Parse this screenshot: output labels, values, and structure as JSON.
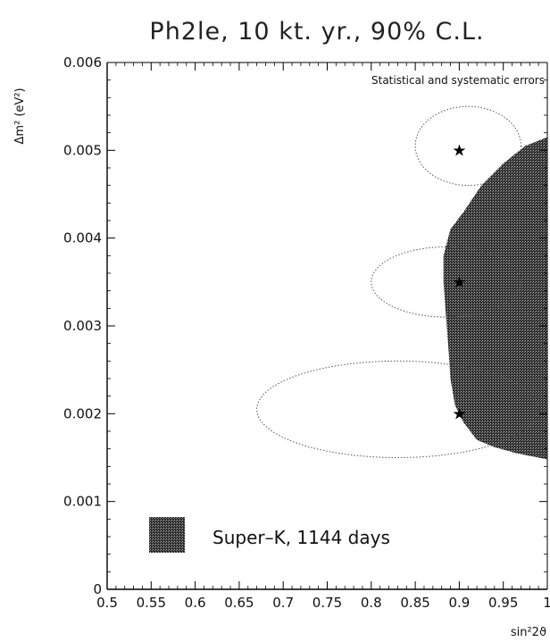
{
  "chart_data": {
    "type": "scatter",
    "title": "Ph2le, 10 kt. yr., 90% C.L.",
    "xlabel": "sin²2ϑ",
    "ylabel": "Δm² (eV²)",
    "xlim": [
      0.5,
      1.0
    ],
    "ylim": [
      0,
      0.006
    ],
    "x_ticks": [
      "0.5",
      "0.55",
      "0.6",
      "0.65",
      "0.7",
      "0.75",
      "0.8",
      "0.85",
      "0.9",
      "0.95",
      "1"
    ],
    "x_tick_values": [
      0.5,
      0.55,
      0.6,
      0.65,
      0.7,
      0.75,
      0.8,
      0.85,
      0.9,
      0.95,
      1.0
    ],
    "y_ticks": [
      "0",
      "0.001",
      "0.002",
      "0.003",
      "0.004",
      "0.005",
      "0.006"
    ],
    "y_tick_values": [
      0,
      0.001,
      0.002,
      0.003,
      0.004,
      0.005,
      0.006
    ],
    "annotation": "Statistical and systematic errors",
    "grid": false,
    "legend_position": "bottom-left",
    "legend": [
      {
        "label": "Super–K, 1144 days",
        "style": "shaded-region",
        "color": "#3a3a3a"
      }
    ],
    "true_points": [
      {
        "x": 0.9,
        "y": 0.005
      },
      {
        "x": 0.9,
        "y": 0.0035
      },
      {
        "x": 0.9,
        "y": 0.002
      }
    ],
    "contours": [
      {
        "center_x": 0.9,
        "center_y": 0.0051,
        "x_min": 0.85,
        "x_max": 0.97,
        "y_min": 0.0046,
        "y_max": 0.0055,
        "style": "dotted"
      },
      {
        "center_x": 0.9,
        "center_y": 0.0035,
        "x_min": 0.8,
        "x_max": 0.97,
        "y_min": 0.0031,
        "y_max": 0.0039,
        "style": "dotted"
      },
      {
        "center_x": 0.9,
        "center_y": 0.0021,
        "x_min": 0.67,
        "x_max": 0.99,
        "y_min": 0.0015,
        "y_max": 0.0026,
        "style": "dotted"
      }
    ],
    "shaded_region": {
      "name": "Super–K, 1144 days",
      "boundary": [
        [
          1.0,
          0.00515
        ],
        [
          0.975,
          0.00505
        ],
        [
          0.95,
          0.00485
        ],
        [
          0.925,
          0.0046
        ],
        [
          0.905,
          0.0043
        ],
        [
          0.89,
          0.0041
        ],
        [
          0.882,
          0.0038
        ],
        [
          0.882,
          0.0035
        ],
        [
          0.885,
          0.0031
        ],
        [
          0.888,
          0.0027
        ],
        [
          0.89,
          0.0024
        ],
        [
          0.895,
          0.0021
        ],
        [
          0.905,
          0.0019
        ],
        [
          0.92,
          0.0017
        ],
        [
          0.94,
          0.00162
        ],
        [
          0.965,
          0.00155
        ],
        [
          1.0,
          0.00148
        ]
      ]
    }
  }
}
